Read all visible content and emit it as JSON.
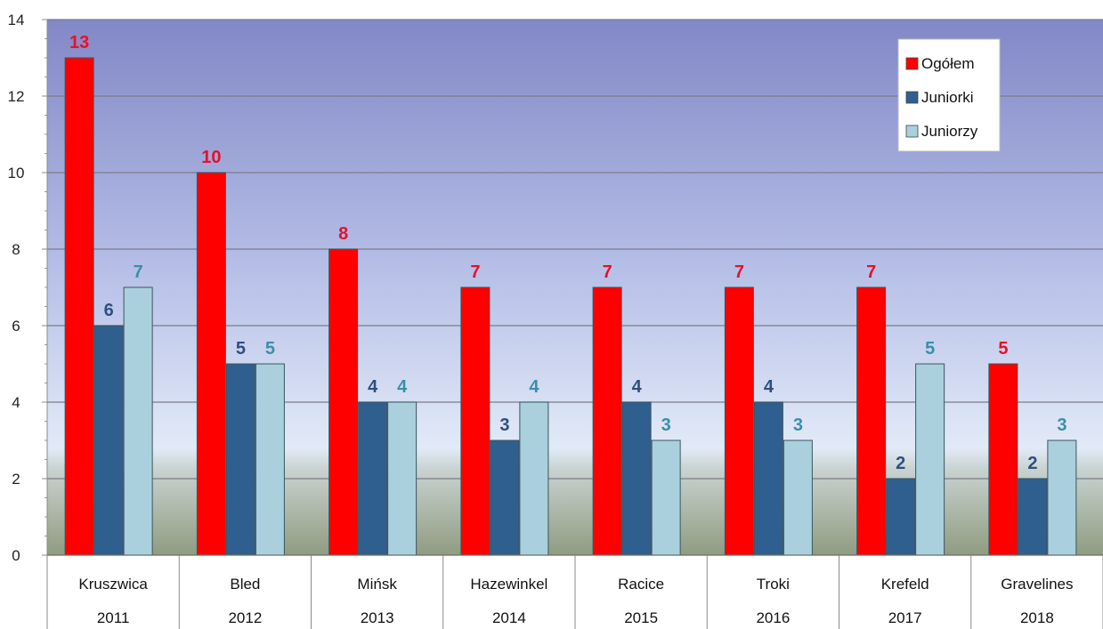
{
  "chart_data": {
    "type": "bar",
    "categories": [
      "Kruszwica",
      "Bled",
      "Mińsk",
      "Hazewinkel",
      "Racice",
      "Troki",
      "Krefeld",
      "Gravelines"
    ],
    "years": [
      "2011",
      "2012",
      "2013",
      "2014",
      "2015",
      "2016",
      "2017",
      "2018"
    ],
    "series": [
      {
        "name": "Ogółem",
        "values": [
          13,
          10,
          8,
          7,
          7,
          7,
          7,
          5
        ],
        "color": "#ff0000",
        "label_color": "#e8102a"
      },
      {
        "name": "Juniorki",
        "values": [
          6,
          5,
          4,
          3,
          4,
          4,
          2,
          2
        ],
        "color": "#2f5f8e",
        "label_color": "#2f4f7f"
      },
      {
        "name": "Juniorzy",
        "values": [
          7,
          5,
          4,
          4,
          3,
          3,
          5,
          3
        ],
        "color": "#a9d0dc",
        "label_color": "#3a8fa8"
      }
    ],
    "ylim": [
      0,
      14
    ],
    "yticks": [
      "0",
      "2",
      "4",
      "6",
      "8",
      "10",
      "12",
      "14"
    ],
    "grid": true,
    "legend_position": "top-right",
    "data_labels": true
  }
}
